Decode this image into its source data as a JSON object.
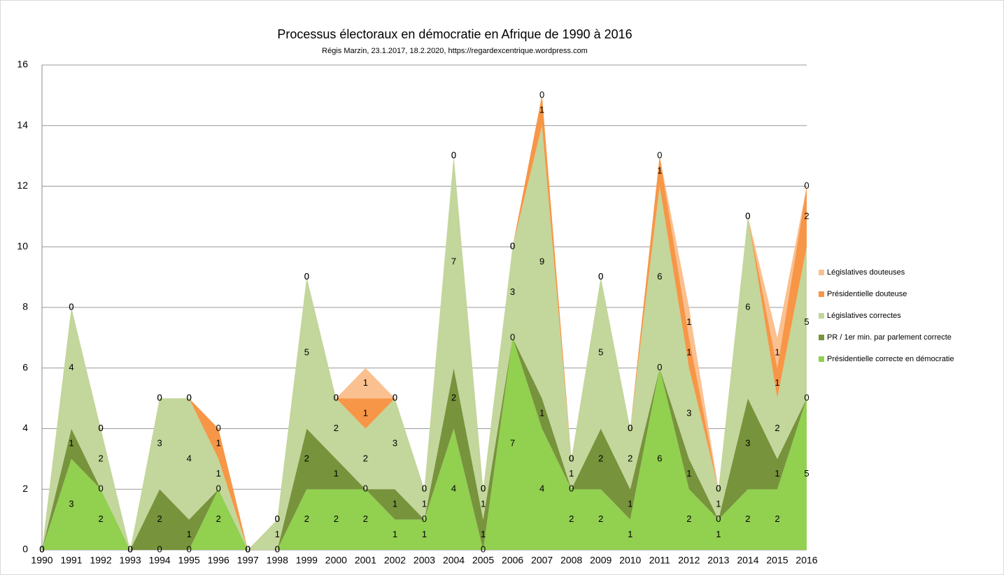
{
  "chart_data": {
    "type": "stacked_area",
    "title": "Processus électoraux en démocratie en Afrique de 1990 à 2016",
    "subtitle": "Régis Marzin, 23.1.2017, 18.2.2020, https://regardexcentrique.wordpress.com",
    "categories": [
      "1990",
      "1991",
      "1992",
      "1993",
      "1994",
      "1995",
      "1996",
      "1997",
      "1998",
      "1999",
      "2000",
      "2001",
      "2002",
      "2003",
      "2004",
      "2005",
      "2006",
      "2007",
      "2008",
      "2009",
      "2010",
      "2011",
      "2012",
      "2013",
      "2014",
      "2015",
      "2016"
    ],
    "series": [
      {
        "name": "Présidentielle correcte en démocratie",
        "color": "#92d050",
        "values": [
          0,
          3,
          2,
          0,
          0,
          0,
          2,
          0,
          0,
          2,
          2,
          2,
          1,
          1,
          4,
          0,
          7,
          4,
          2,
          2,
          1,
          6,
          2,
          1,
          2,
          2,
          5
        ]
      },
      {
        "name": "PR / 1er min. par parlement correcte",
        "color": "#77933c",
        "values": [
          0,
          1,
          0,
          0,
          2,
          1,
          0,
          0,
          0,
          2,
          1,
          0,
          1,
          0,
          2,
          1,
          0,
          1,
          0,
          2,
          1,
          0,
          1,
          0,
          3,
          1,
          0
        ]
      },
      {
        "name": "Législatives correctes",
        "color": "#c3d69b",
        "values": [
          0,
          4,
          2,
          0,
          3,
          4,
          1,
          0,
          1,
          5,
          2,
          2,
          3,
          1,
          7,
          1,
          3,
          9,
          1,
          5,
          2,
          6,
          3,
          1,
          6,
          2,
          5
        ]
      },
      {
        "name": "Présidentielle douteuse",
        "color": "#f79646",
        "values": [
          0,
          0,
          0,
          0,
          0,
          0,
          1,
          0,
          0,
          0,
          0,
          1,
          0,
          0,
          0,
          0,
          0,
          1,
          0,
          0,
          0,
          1,
          1,
          0,
          0,
          1,
          2
        ]
      },
      {
        "name": "Législatives douteuses",
        "color": "#fac090",
        "values": [
          0,
          0,
          0,
          0,
          0,
          0,
          0,
          0,
          0,
          0,
          0,
          1,
          0,
          0,
          0,
          0,
          0,
          0,
          0,
          0,
          0,
          0,
          1,
          0,
          0,
          1,
          0
        ]
      }
    ],
    "ylim": [
      0,
      16
    ],
    "yticks": [
      0,
      2,
      4,
      6,
      8,
      10,
      12,
      14,
      16
    ],
    "grid": true,
    "legend": "right"
  }
}
